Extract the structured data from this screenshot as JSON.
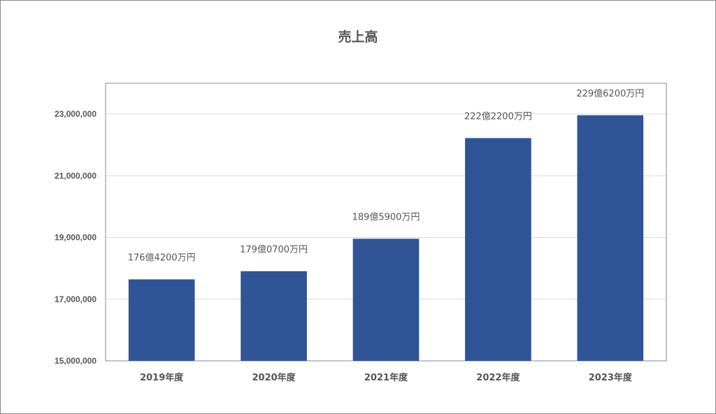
{
  "chart_data": {
    "type": "bar",
    "title": "売上高",
    "xlabel": "",
    "ylabel": "",
    "categories": [
      "2019年度",
      "2020年度",
      "2021年度",
      "2022年度",
      "2023年度"
    ],
    "values": [
      17642000,
      17907000,
      18959000,
      22222000,
      22962000
    ],
    "data_labels": [
      "176億4200万円",
      "179億0700万円",
      "189億5900万円",
      "222億2200万円",
      "229億6200万円"
    ],
    "ylim": [
      15000000,
      24000000
    ],
    "yticks": [
      15000000,
      17000000,
      19000000,
      21000000,
      23000000
    ],
    "ytick_labels": [
      "15,000,000",
      "17,000,000",
      "19,000,000",
      "21,000,000",
      "23,000,000"
    ],
    "grid": true,
    "bar_color": "#2f5597"
  }
}
